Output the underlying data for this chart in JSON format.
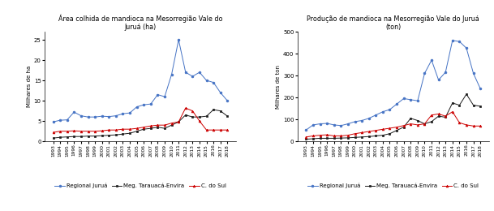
{
  "years": [
    1993,
    1994,
    1995,
    1996,
    1997,
    1998,
    1999,
    2000,
    2001,
    2002,
    2003,
    2004,
    2005,
    2006,
    2007,
    2008,
    2009,
    2010,
    2011,
    2012,
    2013,
    2014,
    2015,
    2016,
    2017,
    2018
  ],
  "area": {
    "regional_jurua": [
      4.8,
      5.2,
      5.3,
      7.2,
      6.3,
      6.0,
      6.0,
      6.2,
      6.1,
      6.3,
      6.8,
      7.0,
      8.5,
      9.0,
      9.2,
      11.5,
      11.0,
      16.5,
      25.0,
      17.0,
      16.0,
      17.0,
      15.0,
      14.5,
      12.0,
      10.0
    ],
    "mesorregiao": [
      0.8,
      1.0,
      1.1,
      1.2,
      1.2,
      1.3,
      1.3,
      1.4,
      1.5,
      1.6,
      1.8,
      2.0,
      2.5,
      3.0,
      3.2,
      3.5,
      3.2,
      4.0,
      4.8,
      6.5,
      6.0,
      6.0,
      6.2,
      7.8,
      7.5,
      6.2
    ],
    "c_do_sul": [
      2.2,
      2.5,
      2.5,
      2.6,
      2.5,
      2.5,
      2.5,
      2.6,
      2.8,
      2.8,
      3.0,
      3.0,
      3.2,
      3.5,
      3.8,
      4.0,
      4.0,
      4.5,
      4.8,
      8.2,
      7.5,
      5.0,
      2.8,
      2.8,
      2.8,
      2.8
    ]
  },
  "producao": {
    "regional_jurua": [
      52,
      75,
      80,
      82,
      75,
      72,
      80,
      90,
      95,
      105,
      120,
      135,
      145,
      170,
      195,
      190,
      185,
      310,
      370,
      280,
      315,
      460,
      455,
      425,
      310,
      240
    ],
    "mesorregiao": [
      10,
      12,
      14,
      14,
      14,
      15,
      16,
      18,
      20,
      22,
      25,
      28,
      35,
      50,
      65,
      105,
      95,
      80,
      90,
      115,
      110,
      175,
      165,
      215,
      165,
      160
    ],
    "c_do_sul": [
      20,
      25,
      28,
      30,
      25,
      25,
      28,
      35,
      40,
      45,
      50,
      55,
      60,
      65,
      72,
      80,
      75,
      80,
      120,
      125,
      115,
      135,
      85,
      75,
      70,
      70
    ]
  },
  "title1": "Área colhida de mandioca na Mesorregião Vale do\nJuruá (ha)",
  "title2": "Produção de mandioca na Mesorregião Vale do Juruá\n(ton)",
  "ylabel1": "Milhares de ha",
  "ylabel2": "Milhares de ton",
  "color_blue": "#4472C4",
  "color_black": "#1a1a1a",
  "color_red": "#CC0000",
  "legend_labels": [
    "Regional Juruá",
    "Meg. Tarauacá-Envira",
    "C. do Sul"
  ],
  "area_ylim": [
    0,
    27
  ],
  "prod_ylim": [
    0,
    500
  ],
  "area_yticks": [
    0,
    5,
    10,
    15,
    20,
    25
  ],
  "prod_yticks": [
    0,
    100,
    200,
    300,
    400,
    500
  ]
}
